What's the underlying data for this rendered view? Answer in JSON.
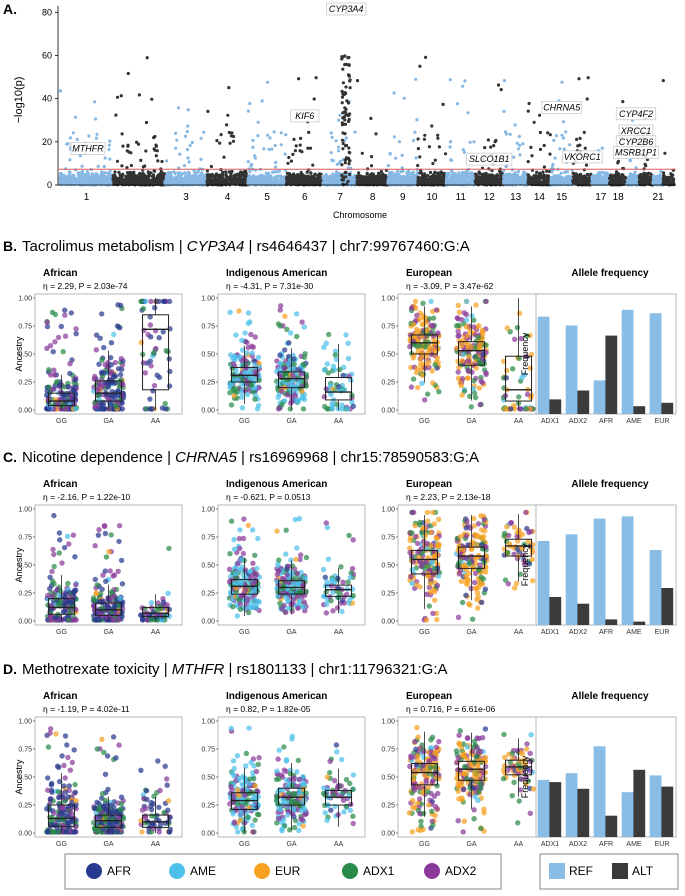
{
  "colors": {
    "AFR": "#283a8f",
    "AME": "#4cc0ea",
    "EUR": "#f7a121",
    "ADX1": "#2a8a4a",
    "ADX2": "#8b3a9b",
    "REF": "#89bde6",
    "ALT": "#3b3b3b",
    "manhattan_light": "#86b8e3",
    "manhattan_dark": "#333333",
    "threshold": "#e0595a"
  },
  "panelA": {
    "label": "A.",
    "ylabel": "−log10(p)",
    "xlabel": "Chromosome",
    "yticks": [
      0,
      20,
      40,
      60,
      80
    ],
    "chrom_labels": [
      "1",
      "3",
      "4",
      "5",
      "6",
      "7",
      "8",
      "9",
      "10",
      "11",
      "12",
      "13",
      "14",
      "15",
      "17",
      "18",
      "21"
    ],
    "chart_data": {
      "type": "scatter",
      "ylim": [
        0,
        82
      ],
      "threshold": 7.3,
      "genes": [
        {
          "name": "CYP3A4",
          "chr": 7,
          "y": 80
        },
        {
          "name": "MTHFR",
          "chr": 1,
          "y": 17
        },
        {
          "name": "KIF6",
          "chr": 6,
          "y": 32
        },
        {
          "name": "CHRNA5",
          "chr": 15,
          "y": 36
        },
        {
          "name": "SLCO1B1",
          "chr": 12,
          "y": 12
        },
        {
          "name": "VKORC1",
          "chr": 16,
          "y": 13
        },
        {
          "name": "CYP4F2",
          "chr": 19,
          "y": 33
        },
        {
          "name": "XRCC1",
          "chr": 19,
          "y": 25
        },
        {
          "name": "CYP2B6",
          "chr": 19,
          "y": 20
        },
        {
          "name": "MSRB1P1",
          "chr": 19,
          "y": 15
        }
      ]
    }
  },
  "legend": {
    "pops": [
      {
        "key": "AFR",
        "label": "AFR"
      },
      {
        "key": "AME",
        "label": "AME"
      },
      {
        "key": "EUR",
        "label": "EUR"
      },
      {
        "key": "ADX1",
        "label": "ADX1"
      },
      {
        "key": "ADX2",
        "label": "ADX2"
      }
    ],
    "alleles": [
      {
        "key": "REF",
        "label": "REF"
      },
      {
        "key": "ALT",
        "label": "ALT"
      }
    ]
  },
  "common": {
    "genotypes": [
      "GG",
      "GA",
      "AA"
    ],
    "ancestry_label": "Ancestry",
    "frequency_label": "Frequency",
    "allele_freq_title": "Allele frequency",
    "yticks": [
      "0.00",
      "0.25",
      "0.50",
      "0.75",
      "1.00"
    ],
    "groups": [
      "ADX1",
      "ADX2",
      "AFR",
      "AME",
      "EUR"
    ]
  },
  "rows": [
    {
      "label": "B.",
      "title_pre": "Tacrolimus metabolism | ",
      "gene": "CYP3A4",
      "title_post": " | rs4646437 | chr7:99767460:G:A",
      "panels": [
        {
          "title": "African",
          "stat": "η = 2.29, P = 2.03e-74",
          "medians": [
            0.08,
            0.15,
            0.72
          ],
          "q1": [
            0.04,
            0.08,
            0.18
          ],
          "q3": [
            0.15,
            0.26,
            0.85
          ],
          "main": "AFR"
        },
        {
          "title": "Indigenous American",
          "stat": "η = -4.31, P = 7.31e-30",
          "medians": [
            0.31,
            0.28,
            0.16
          ],
          "q1": [
            0.25,
            0.2,
            0.09
          ],
          "q3": [
            0.38,
            0.34,
            0.29
          ],
          "main": "AME"
        },
        {
          "title": "European",
          "stat": "η = -3.09, P = 3.47e-62",
          "medians": [
            0.6,
            0.53,
            0.18
          ],
          "q1": [
            0.5,
            0.4,
            0.08
          ],
          "q3": [
            0.67,
            0.61,
            0.48
          ],
          "main": "EUR"
        }
      ],
      "chart_data": {
        "type": "bar",
        "categories": [
          "ADX1",
          "ADX2",
          "AFR",
          "AME",
          "EUR"
        ],
        "series": [
          {
            "name": "REF",
            "values": [
              0.87,
              0.79,
              0.3,
              0.93,
              0.9
            ]
          },
          {
            "name": "ALT",
            "values": [
              0.13,
              0.21,
              0.7,
              0.07,
              0.1
            ]
          }
        ],
        "ylim": [
          0,
          1
        ]
      }
    },
    {
      "label": "C.",
      "title_pre": "Nicotine dependence | ",
      "gene": "CHRNA5",
      "title_post": " | rs16969968 | chr15:78590583:G:A",
      "panels": [
        {
          "title": "African",
          "stat": "η = -2.16, P = 1.22e-10",
          "medians": [
            0.12,
            0.1,
            0.07
          ],
          "q1": [
            0.06,
            0.05,
            0.04
          ],
          "q3": [
            0.2,
            0.16,
            0.12
          ],
          "main": "AFR"
        },
        {
          "title": "Indigenous American",
          "stat": "η = -0.621, P = 0.0513",
          "medians": [
            0.31,
            0.3,
            0.28
          ],
          "q1": [
            0.24,
            0.24,
            0.22
          ],
          "q3": [
            0.37,
            0.36,
            0.32
          ],
          "main": "AME"
        },
        {
          "title": "European",
          "stat": "η = 2.23, P = 2.13e-18",
          "medians": [
            0.55,
            0.58,
            0.67
          ],
          "q1": [
            0.42,
            0.47,
            0.58
          ],
          "q3": [
            0.63,
            0.66,
            0.73
          ],
          "main": "EUR"
        }
      ],
      "chart_data": {
        "type": "bar",
        "categories": [
          "ADX1",
          "ADX2",
          "AFR",
          "AME",
          "EUR"
        ],
        "series": [
          {
            "name": "REF",
            "values": [
              0.75,
              0.81,
              0.95,
              0.97,
              0.67
            ]
          },
          {
            "name": "ALT",
            "values": [
              0.25,
              0.19,
              0.05,
              0.03,
              0.33
            ]
          }
        ],
        "ylim": [
          0,
          1
        ]
      }
    },
    {
      "label": "D.",
      "title_pre": "Methotrexate toxicity | ",
      "gene": "MTHFR",
      "title_post": " | rs1801133 | chr1:11796321:G:A",
      "panels": [
        {
          "title": "African",
          "stat": "η = -1.19, P = 4.02e-11",
          "medians": [
            0.13,
            0.11,
            0.1
          ],
          "q1": [
            0.06,
            0.05,
            0.05
          ],
          "q3": [
            0.25,
            0.16,
            0.16
          ],
          "main": "AFR"
        },
        {
          "title": "Indigenous American",
          "stat": "η = 0.82, P = 1.82e-05",
          "medians": [
            0.29,
            0.32,
            0.32
          ],
          "q1": [
            0.21,
            0.25,
            0.25
          ],
          "q3": [
            0.36,
            0.4,
            0.38
          ],
          "main": "AME"
        },
        {
          "title": "European",
          "stat": "η = 0.716, P = 6.61e-06",
          "medians": [
            0.54,
            0.57,
            0.59
          ],
          "q1": [
            0.43,
            0.47,
            0.52
          ],
          "q3": [
            0.62,
            0.64,
            0.65
          ],
          "main": "EUR"
        }
      ],
      "chart_data": {
        "type": "bar",
        "categories": [
          "ADX1",
          "ADX2",
          "AFR",
          "AME",
          "EUR"
        ],
        "series": [
          {
            "name": "REF",
            "values": [
              0.51,
              0.57,
              0.81,
              0.4,
              0.55
            ]
          },
          {
            "name": "ALT",
            "values": [
              0.49,
              0.43,
              0.19,
              0.6,
              0.45
            ]
          }
        ],
        "ylim": [
          0,
          1
        ]
      }
    }
  ]
}
